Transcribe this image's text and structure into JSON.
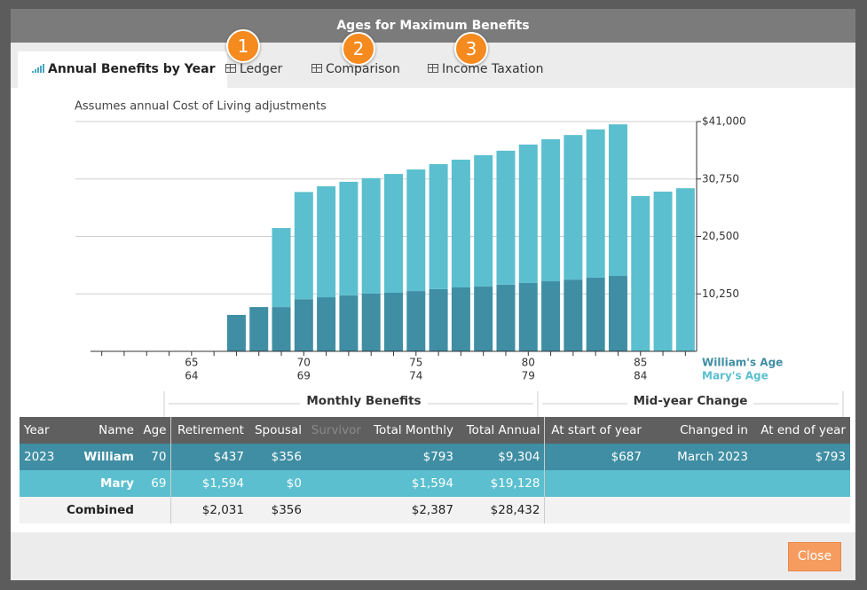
{
  "dialog": {
    "title": "Ages for Maximum Benefits",
    "close_button": "Close"
  },
  "tabs": [
    "Annual Benefits by Year",
    "Ledger",
    "Comparison",
    "Income Taxation"
  ],
  "badges": [
    "1",
    "2",
    "3"
  ],
  "chart_data": {
    "type": "bar",
    "stacked": true,
    "subtitle": "Assumes annual Cost of Living adjustments",
    "categories": [
      null,
      null,
      null,
      null,
      "65",
      null,
      null,
      null,
      null,
      "70",
      null,
      null,
      null,
      null,
      "75",
      null,
      null,
      null,
      null,
      "80",
      null,
      null,
      null,
      null,
      "85",
      null,
      null
    ],
    "categories_secondary": [
      null,
      null,
      null,
      null,
      "64",
      null,
      null,
      null,
      null,
      "69",
      null,
      null,
      null,
      null,
      "74",
      null,
      null,
      null,
      null,
      "79",
      null,
      null,
      null,
      null,
      "84",
      null,
      null
    ],
    "series": [
      {
        "name": "William's Age",
        "color": "#3f8ea3",
        "values": [
          0,
          0,
          0,
          0,
          0,
          0,
          6500,
          7900,
          7900,
          9304,
          9650,
          10000,
          10300,
          10450,
          10750,
          11100,
          11400,
          11550,
          11900,
          12200,
          12500,
          12800,
          13150,
          13450,
          0,
          0,
          0
        ]
      },
      {
        "name": "Mary's Age",
        "color": "#5bbfcf",
        "values": [
          0,
          0,
          0,
          0,
          0,
          0,
          0,
          0,
          14100,
          19128,
          19800,
          20250,
          20600,
          21200,
          21700,
          22300,
          22800,
          23450,
          23900,
          24700,
          25350,
          25800,
          26450,
          27050,
          27700,
          28500,
          29100
        ]
      }
    ],
    "ylim": [
      0,
      41000
    ],
    "yticks": [
      {
        "value": 10250,
        "label": "10,250"
      },
      {
        "value": 20500,
        "label": "20,500"
      },
      {
        "value": 30750,
        "label": "30,750"
      },
      {
        "value": 41000,
        "label": "$41,000"
      }
    ],
    "grid": true,
    "y_axis_side": "right"
  },
  "table": {
    "groups": [
      "Monthly Benefits",
      "Mid-year Change"
    ],
    "columns": [
      "Year",
      "Name",
      "Age",
      "Retirement",
      "Spousal",
      "Survivor",
      "Total Monthly",
      "Total Annual",
      "At start of year",
      "Changed in",
      "At end of year"
    ],
    "rows": [
      [
        "2023",
        "William",
        "70",
        "$437",
        "$356",
        null,
        "$793",
        "$9,304",
        "$687",
        "March 2023",
        "$793"
      ],
      [
        null,
        "Mary",
        "69",
        "$1,594",
        "$0",
        null,
        "$1,594",
        "$19,128",
        null,
        null,
        null
      ],
      [
        null,
        "Combined",
        null,
        "$2,031",
        "$356",
        null,
        "$2,387",
        "$28,432",
        null,
        null,
        null
      ]
    ]
  }
}
